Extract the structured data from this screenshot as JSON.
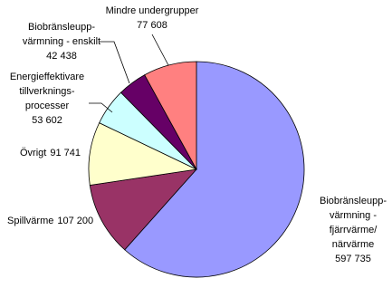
{
  "chart_data": {
    "type": "pie",
    "categories": [
      "Biobränsleupp-\nvärmning -\nfjärrvärme/\nnärvärme",
      "Spillvärme",
      "Övrigt",
      "Energieffektivare\ntillverknings-\nprocesser",
      "Biobränsleupp-\nvärmning - enskilt",
      "Mindre undergrupper"
    ],
    "values": [
      597735,
      107200,
      91741,
      53602,
      42438,
      77608
    ],
    "value_labels": [
      "597 735",
      "107 200",
      "91 741",
      "53 602",
      "42 438",
      "77 608"
    ],
    "colors": [
      "#9999ff",
      "#993366",
      "#ffffcc",
      "#ccffff",
      "#660066",
      "#ff8080"
    ]
  }
}
